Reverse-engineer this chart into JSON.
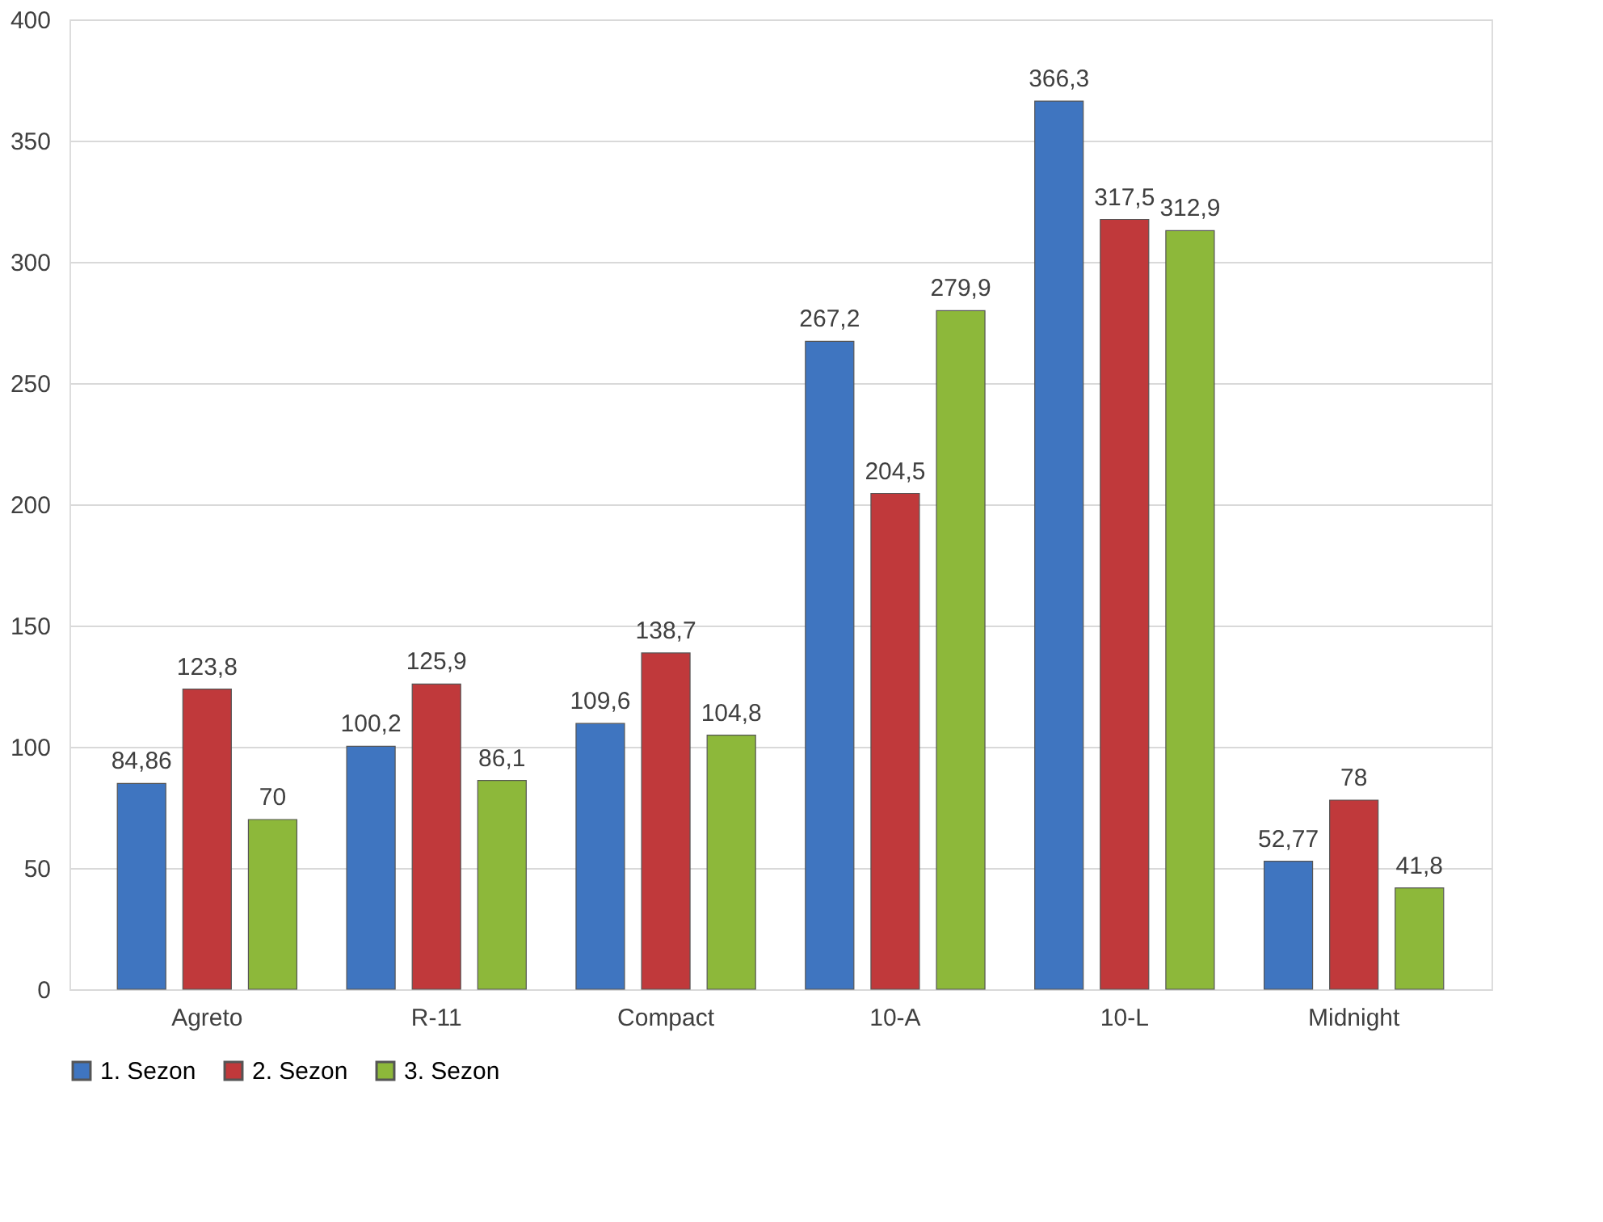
{
  "chart_data": {
    "type": "bar",
    "categories": [
      "Agreto",
      "R-11",
      "Compact",
      "10-A",
      "10-L",
      "Midnight"
    ],
    "series": [
      {
        "name": "1. Sezon",
        "color": "#3f75c0",
        "values": [
          84.86,
          100.2,
          109.6,
          267.2,
          366.3,
          52.77
        ],
        "value_labels": [
          "84,86",
          "100,2",
          "109,6",
          "267,2",
          "366,3",
          "52,77"
        ]
      },
      {
        "name": "2. Sezon",
        "color": "#c0393b",
        "values": [
          123.8,
          125.9,
          138.7,
          204.5,
          317.5,
          78
        ],
        "value_labels": [
          "123,8",
          "125,9",
          "138,7",
          "204,5",
          "317,5",
          "78"
        ]
      },
      {
        "name": "3. Sezon",
        "color": "#8db83a",
        "values": [
          70,
          86.1,
          104.8,
          279.9,
          312.9,
          41.8
        ],
        "value_labels": [
          "70",
          "86,1",
          "104,8",
          "279,9",
          "312,9",
          "41,8"
        ]
      }
    ],
    "ylim": [
      0,
      400
    ],
    "yticks": [
      0,
      50,
      100,
      150,
      200,
      250,
      300,
      350,
      400
    ],
    "grid": "y",
    "legend": "bottom"
  }
}
